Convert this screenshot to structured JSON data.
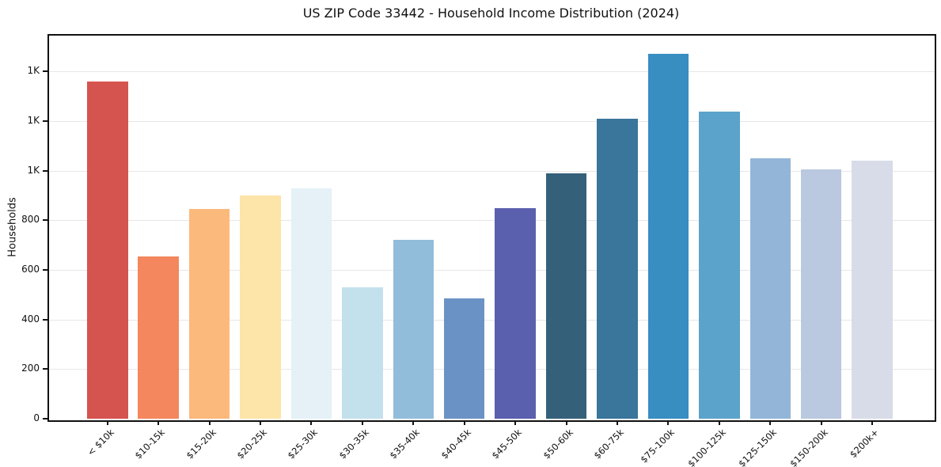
{
  "chart_data": {
    "type": "bar",
    "title": "US ZIP Code 33442 - Household Income Distribution (2024)",
    "xlabel": "",
    "ylabel": "Households",
    "categories": [
      "< $10k",
      "$10-15k",
      "$15-20k",
      "$20-25k",
      "$25-30k",
      "$30-35k",
      "$35-40k",
      "$40-45k",
      "$45-50k",
      "$50-60k",
      "$60-75k",
      "$75-100k",
      "$100-125k",
      "$125-150k",
      "$150-200k",
      "$200k+"
    ],
    "values": [
      1360,
      655,
      845,
      900,
      930,
      530,
      720,
      485,
      850,
      990,
      1210,
      1470,
      1240,
      1050,
      1005,
      1040
    ],
    "bar_colors": [
      "#d6544f",
      "#f4875e",
      "#fbb97c",
      "#fde4a8",
      "#e5f1f7",
      "#c3e1ed",
      "#92bdda",
      "#6b92c4",
      "#5a5fae",
      "#35607a",
      "#3a759c",
      "#388dc1",
      "#5ca3cb",
      "#93b6d8",
      "#bac8e0",
      "#d8dbe8"
    ],
    "ylim": [
      0,
      1545
    ],
    "yticks": {
      "values": [
        0,
        200,
        400,
        600,
        800,
        1000,
        1200,
        1400
      ],
      "labels": [
        "0",
        "200",
        "400",
        "600",
        "800",
        "1K",
        "1K",
        "1K"
      ]
    },
    "grid": "horizontal",
    "legend": "none",
    "x_tick_rotation": 45,
    "frame_color": "#111111",
    "grid_color": "#e7e7e7",
    "background_color": "#ffffff"
  }
}
